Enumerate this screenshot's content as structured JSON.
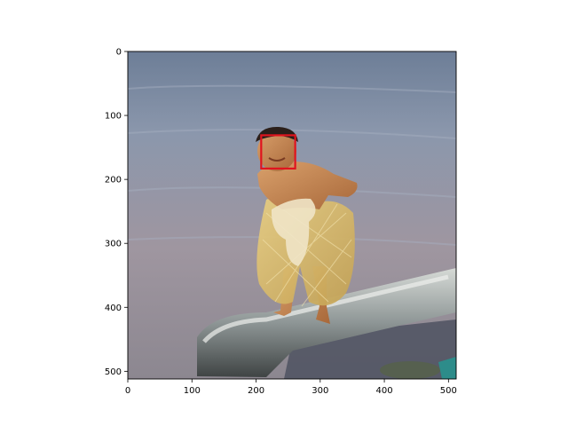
{
  "chart_data": {
    "type": "image",
    "xlim": [
      0,
      512
    ],
    "ylim": [
      512,
      0
    ],
    "x_ticks": [
      0,
      100,
      200,
      300,
      400,
      500
    ],
    "y_ticks": [
      0,
      100,
      200,
      300,
      400,
      500
    ],
    "annotation": {
      "shape": "rectangle",
      "color": "#e0141e",
      "x": [
        208,
        261
      ],
      "y": [
        131,
        183
      ]
    }
  },
  "image_content": {
    "x_tick_labels": [
      "0",
      "100",
      "200",
      "300",
      "400",
      "500"
    ],
    "y_tick_labels": [
      "0",
      "100",
      "200",
      "300",
      "400",
      "500"
    ]
  }
}
